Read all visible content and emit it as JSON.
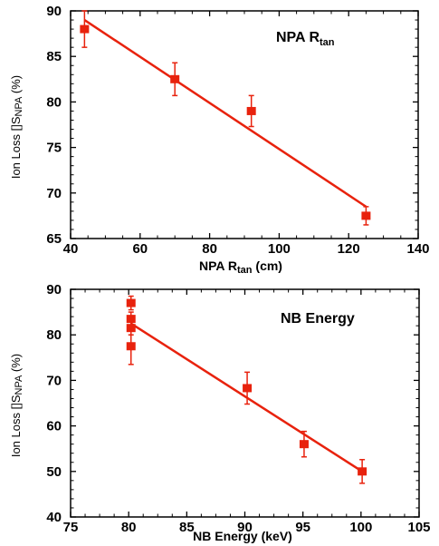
{
  "chart_data": [
    {
      "type": "scatter",
      "title": "NPA R",
      "title_sub": "tan",
      "xlabel": "NPA R",
      "xlabel_sub": "tan",
      "xlabel_unit": " (cm)",
      "ylabel": "Ion Loss []S",
      "ylabel_sub": "NPA",
      "ylabel_unit": " (%)",
      "xlim": [
        40,
        140
      ],
      "ylim": [
        65,
        90
      ],
      "xticks": [
        "40",
        "60",
        "80",
        "100",
        "120",
        "140"
      ],
      "yticks": [
        "65",
        "70",
        "75",
        "80",
        "85",
        "90"
      ],
      "points": [
        {
          "x": 44,
          "y": 88.0,
          "err": 2.0
        },
        {
          "x": 70,
          "y": 82.5,
          "err": 1.8
        },
        {
          "x": 92,
          "y": 79.0,
          "err": 1.7
        },
        {
          "x": 125,
          "y": 67.5,
          "err": 1.0
        }
      ],
      "fit_line": [
        [
          44,
          89.0
        ],
        [
          125,
          68.5
        ]
      ],
      "color": "#e8220d"
    },
    {
      "type": "scatter",
      "title": "NB Energy",
      "xlabel": "NB Energy (keV)",
      "ylabel": "Ion Loss []S",
      "ylabel_sub": "NPA",
      "ylabel_unit": " (%)",
      "xlim": [
        75,
        105
      ],
      "ylim": [
        40,
        90
      ],
      "xticks": [
        "75",
        "80",
        "85",
        "90",
        "95",
        "100",
        "105"
      ],
      "yticks": [
        "40",
        "50",
        "60",
        "70",
        "80",
        "90"
      ],
      "points": [
        {
          "x": 80.2,
          "y": 87.0,
          "err": 1.5
        },
        {
          "x": 80.2,
          "y": 83.5,
          "err": 1.5
        },
        {
          "x": 80.2,
          "y": 81.5,
          "err": 1.5
        },
        {
          "x": 80.2,
          "y": 77.5,
          "err": 4.0
        },
        {
          "x": 90.2,
          "y": 68.3,
          "err": 3.5
        },
        {
          "x": 95.1,
          "y": 56.0,
          "err": 2.8
        },
        {
          "x": 100.1,
          "y": 50.0,
          "err": 2.6
        }
      ],
      "fit_line": [
        [
          80.2,
          82.5
        ],
        [
          100.1,
          50.0
        ]
      ],
      "color": "#e8220d"
    }
  ]
}
